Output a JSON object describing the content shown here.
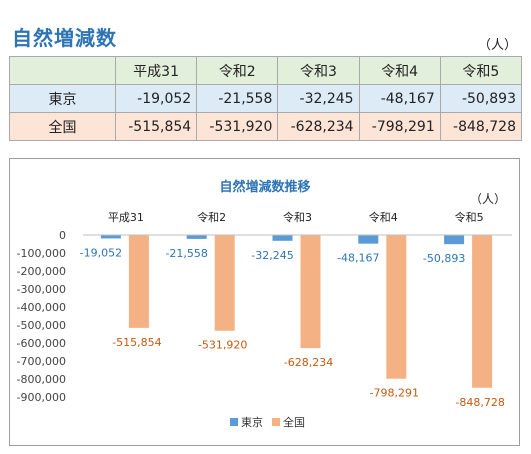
{
  "page_title": "自然増減数",
  "unit": "（人）",
  "table": {
    "headers": [
      "",
      "平成31",
      "令和2",
      "令和3",
      "令和4",
      "令和5"
    ],
    "rows": [
      {
        "label": "東京",
        "values": [
          "-19,052",
          "-21,558",
          "-32,245",
          "-48,167",
          "-50,893"
        ]
      },
      {
        "label": "全国",
        "values": [
          "-515,854",
          "-531,920",
          "-628,234",
          "-798,291",
          "-848,728"
        ]
      }
    ]
  },
  "colors": {
    "tokyo": "#5b9bd5",
    "zenkoku": "#f4b183",
    "title": "#2e74b5"
  },
  "chart_data": {
    "type": "bar",
    "title": "自然増減数推移",
    "unit": "（人）",
    "categories": [
      "平成31",
      "令和2",
      "令和3",
      "令和4",
      "令和5"
    ],
    "series": [
      {
        "name": "東京",
        "values": [
          -19052,
          -21558,
          -32245,
          -48167,
          -50893
        ],
        "labels": [
          "-19,052",
          "-21,558",
          "-32,245",
          "-48,167",
          "-50,893"
        ]
      },
      {
        "name": "全国",
        "values": [
          -515854,
          -531920,
          -628234,
          -798291,
          -848728
        ],
        "labels": [
          "-515,854",
          "-531,920",
          "-628,234",
          "-798,291",
          "-848,728"
        ]
      }
    ],
    "ylim": [
      -900000,
      0
    ],
    "yticks": [
      0,
      -100000,
      -200000,
      -300000,
      -400000,
      -500000,
      -600000,
      -700000,
      -800000,
      -900000
    ],
    "ytick_labels": [
      "0",
      "-100,000",
      "-200,000",
      "-300,000",
      "-400,000",
      "-500,000",
      "-600,000",
      "-700,000",
      "-800,000",
      "-900,000"
    ],
    "grid": false,
    "legend": "bottom"
  }
}
